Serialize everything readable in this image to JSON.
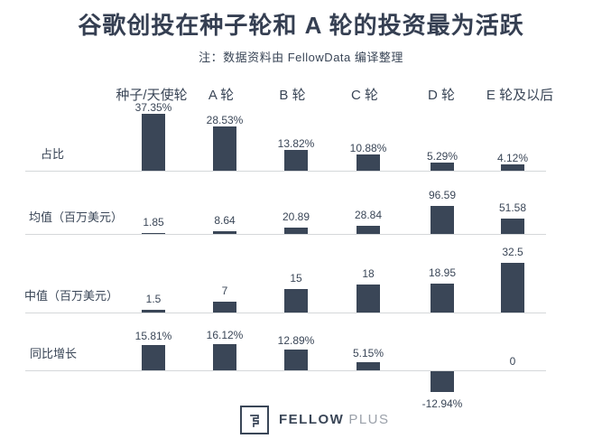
{
  "title": "谷歌创投在种子轮和 A 轮的投资最为活跃",
  "subtitle": "注：数据资料由 FellowData 编译整理",
  "logo": {
    "primary": "FELLOW",
    "secondary": "PLUS"
  },
  "colors": {
    "bar": "#3A4657",
    "text": "#3A4657",
    "baseline": "#D5D8DA",
    "logo_secondary": "#9BA1AA"
  },
  "chart_data": {
    "type": "bar",
    "layout_hint": {
      "orientation": "small-multiples, one bar row per metric",
      "grid": "single gray baseline under each row",
      "value_labels": "above each bar (below bar when negative)",
      "legend": "none"
    },
    "categories": [
      "种子/天使轮",
      "A 轮",
      "B 轮",
      "C 轮",
      "D 轮",
      "E 轮及以后"
    ],
    "series": [
      {
        "name": "占比",
        "unit": "%",
        "values": [
          37.35,
          28.53,
          13.82,
          10.88,
          5.29,
          4.12
        ],
        "labels": [
          "37.35%",
          "28.53%",
          "13.82%",
          "10.88%",
          "5.29%",
          "4.12%"
        ]
      },
      {
        "name": "均值（百万美元）",
        "unit": "百万美元",
        "values": [
          1.85,
          8.64,
          20.89,
          28.84,
          96.59,
          51.58
        ],
        "labels": [
          "1.85",
          "8.64",
          "20.89",
          "28.84",
          "96.59",
          "51.58"
        ]
      },
      {
        "name": "中值（百万美元）",
        "unit": "百万美元",
        "values": [
          1.5,
          7,
          15,
          18,
          18.95,
          32.5
        ],
        "labels": [
          "1.5",
          "7",
          "15",
          "18",
          "18.95",
          "32.5"
        ]
      },
      {
        "name": "同比增长",
        "unit": "%",
        "values": [
          15.81,
          16.12,
          12.89,
          5.15,
          -12.94,
          0
        ],
        "labels": [
          "15.81%",
          "16.12%",
          "12.89%",
          "5.15%",
          "-12.94%",
          "0"
        ]
      }
    ]
  }
}
